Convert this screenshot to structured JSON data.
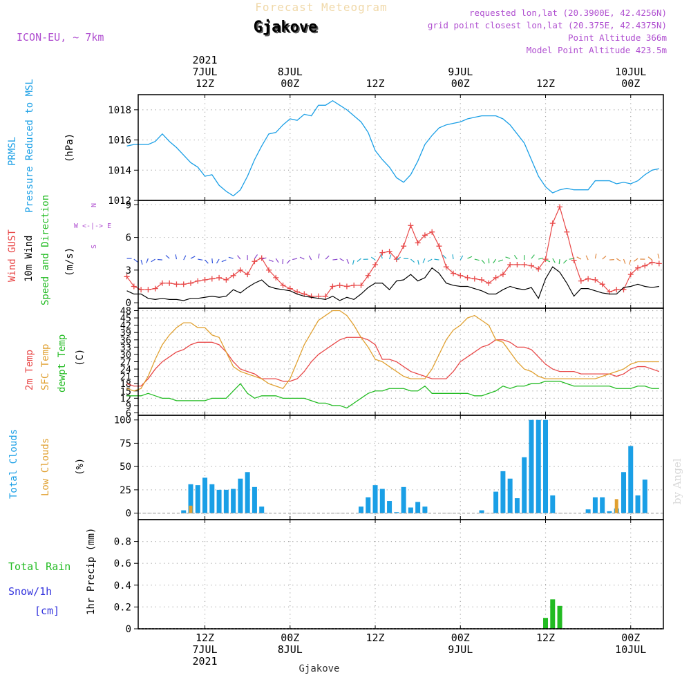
{
  "header": {
    "forecast_title": "Forecast Meteogram",
    "location": "Gjakove",
    "model": "ICON-EU, ~ 7km",
    "requested": "requested lon,lat (20.3900E, 42.4256N)",
    "grid_point": "grid point closest lon,lat (20.375E, 42.4375N)",
    "point_altitude": "Point Altitude 366m",
    "model_altitude": "Model Point Altitude 423.5m",
    "footer_location": "Gjakove",
    "watermark": "by Angel"
  },
  "colors": {
    "pressure": "#1a9fe6",
    "gust": "#e84848",
    "wind": "#000000",
    "green": "#22bb22",
    "sfc": "#e0a030",
    "total_clouds": "#1a9fe6",
    "low_clouds": "#e0a030",
    "rain": "#22bb22",
    "snow": "#3333dd",
    "purple": "#b050d0"
  },
  "time_axis": {
    "ticks": [
      12,
      24,
      36,
      48,
      60,
      72
    ],
    "top_labels": [
      {
        "h": 12,
        "lines": [
          "2021",
          "7JUL",
          "12Z"
        ]
      },
      {
        "h": 24,
        "lines": [
          "8JUL",
          "00Z"
        ]
      },
      {
        "h": 36,
        "lines": [
          "12Z"
        ]
      },
      {
        "h": 48,
        "lines": [
          "9JUL",
          "00Z"
        ]
      },
      {
        "h": 60,
        "lines": [
          "12Z"
        ]
      },
      {
        "h": 72,
        "lines": [
          "10JUL",
          "00Z"
        ]
      }
    ],
    "bottom_labels": [
      {
        "h": 12,
        "lines": [
          "12Z",
          "7JUL",
          "2021"
        ]
      },
      {
        "h": 24,
        "lines": [
          "00Z",
          "8JUL"
        ]
      },
      {
        "h": 36,
        "lines": [
          "12Z"
        ]
      },
      {
        "h": 48,
        "lines": [
          "00Z",
          "9JUL"
        ]
      },
      {
        "h": 60,
        "lines": [
          "12Z"
        ]
      },
      {
        "h": 72,
        "lines": [
          "00Z",
          "10JUL"
        ]
      }
    ]
  },
  "chart_data": [
    {
      "id": "pressure",
      "type": "line",
      "ylabel_lines": [
        "PRMSL",
        "Pressure Reduced to MSL"
      ],
      "unit": "(hPa)",
      "ylim": [
        1012,
        1019
      ],
      "ticks": [
        1012,
        1014,
        1016,
        1018
      ],
      "tick_labels": [
        "1012",
        "1014",
        "1016",
        "1018"
      ],
      "x": [
        1,
        2,
        3,
        4,
        5,
        6,
        7,
        8,
        9,
        10,
        11,
        12,
        13,
        14,
        15,
        16,
        17,
        18,
        19,
        20,
        21,
        22,
        23,
        24,
        25,
        26,
        27,
        28,
        29,
        30,
        31,
        32,
        33,
        34,
        35,
        36,
        37,
        38,
        39,
        40,
        41,
        42,
        43,
        44,
        45,
        46,
        47,
        48,
        49,
        50,
        51,
        52,
        53,
        54,
        55,
        56,
        57,
        58,
        59,
        60,
        61,
        62,
        63,
        64,
        65,
        66,
        67,
        68,
        69,
        70,
        71,
        72,
        73,
        74,
        75,
        76
      ],
      "y": [
        1015.6,
        1015.7,
        1015.7,
        1015.7,
        1015.9,
        1016.4,
        1015.9,
        1015.5,
        1015.0,
        1014.5,
        1014.2,
        1013.6,
        1013.7,
        1013.0,
        1012.6,
        1012.3,
        1012.7,
        1013.6,
        1014.7,
        1015.6,
        1016.4,
        1016.5,
        1017.0,
        1017.4,
        1017.3,
        1017.7,
        1017.6,
        1018.3,
        1018.3,
        1018.6,
        1018.3,
        1018.0,
        1017.6,
        1017.2,
        1016.5,
        1015.3,
        1014.7,
        1014.2,
        1013.5,
        1013.2,
        1013.7,
        1014.6,
        1015.7,
        1016.3,
        1016.8,
        1017.0,
        1017.1,
        1017.2,
        1017.4,
        1017.5,
        1017.6,
        1017.6,
        1017.6,
        1017.4,
        1017.0,
        1016.4,
        1015.8,
        1014.7,
        1013.6,
        1012.9,
        1012.5,
        1012.7,
        1012.8,
        1012.7,
        1012.7,
        1012.7,
        1013.3,
        1013.3,
        1013.3,
        1013.1,
        1013.2,
        1013.1,
        1013.3,
        1013.7,
        1014.0,
        1014.1
      ],
      "series": [
        {
          "values_ref": "y"
        }
      ]
    },
    {
      "id": "wind",
      "type": "line",
      "ylabel_lines": [
        "Wind GUST",
        "10m Wind",
        "Speed and Direction"
      ],
      "unit": "(m/s)",
      "compass": [
        "N",
        "W <-|-> E",
        "S"
      ],
      "ylim": [
        -0.5,
        9.4
      ],
      "ticks": [
        0,
        3,
        6,
        9
      ],
      "tick_labels": [
        "0",
        "3",
        "6",
        "9"
      ],
      "x": [
        1,
        2,
        3,
        4,
        5,
        6,
        7,
        8,
        9,
        10,
        11,
        12,
        13,
        14,
        15,
        16,
        17,
        18,
        19,
        20,
        21,
        22,
        23,
        24,
        25,
        26,
        27,
        28,
        29,
        30,
        31,
        32,
        33,
        34,
        35,
        36,
        37,
        38,
        39,
        40,
        41,
        42,
        43,
        44,
        45,
        46,
        47,
        48,
        49,
        50,
        51,
        52,
        53,
        54,
        55,
        56,
        57,
        58,
        59,
        60,
        61,
        62,
        63,
        64,
        65,
        66,
        67,
        68,
        69,
        70,
        71,
        72,
        73,
        74,
        75,
        76
      ],
      "series": [
        {
          "name": "Wind GUST",
          "values": [
            2.4,
            1.5,
            1.2,
            1.2,
            1.3,
            1.8,
            1.8,
            1.7,
            1.7,
            1.8,
            2.0,
            2.1,
            2.2,
            2.3,
            2.1,
            2.5,
            3.0,
            2.6,
            3.8,
            4.1,
            3.0,
            2.3,
            1.6,
            1.3,
            1.0,
            0.8,
            0.6,
            0.6,
            0.6,
            1.5,
            1.6,
            1.5,
            1.6,
            1.6,
            2.5,
            3.5,
            4.6,
            4.7,
            4.0,
            5.2,
            7.1,
            5.5,
            6.2,
            6.5,
            5.2,
            3.3,
            2.7,
            2.5,
            2.3,
            2.2,
            2.1,
            1.8,
            2.3,
            2.6,
            3.5,
            3.5,
            3.5,
            3.4,
            3.1,
            4.0,
            7.3,
            8.8,
            6.5,
            3.9,
            2.0,
            2.2,
            2.1,
            1.7,
            1.0,
            1.2,
            1.2,
            2.6,
            3.2,
            3.4,
            3.7,
            3.6
          ]
        },
        {
          "name": "10m Wind",
          "values": [
            1.1,
            0.8,
            0.8,
            0.4,
            0.3,
            0.4,
            0.3,
            0.3,
            0.2,
            0.4,
            0.4,
            0.5,
            0.6,
            0.5,
            0.6,
            1.2,
            0.9,
            1.4,
            1.8,
            2.1,
            1.5,
            1.3,
            1.2,
            1.1,
            0.8,
            0.6,
            0.5,
            0.4,
            0.3,
            0.6,
            0.2,
            0.5,
            0.3,
            0.8,
            1.4,
            1.8,
            1.8,
            1.2,
            2.0,
            2.1,
            2.6,
            2.0,
            2.3,
            3.2,
            2.7,
            1.8,
            1.6,
            1.5,
            1.5,
            1.3,
            1.1,
            0.8,
            0.8,
            1.2,
            1.5,
            1.3,
            1.2,
            1.4,
            0.4,
            2.2,
            3.3,
            2.8,
            1.8,
            0.6,
            1.3,
            1.3,
            1.1,
            0.9,
            0.8,
            0.8,
            1.4,
            1.5,
            1.7,
            1.5,
            1.4,
            1.5
          ]
        }
      ]
    },
    {
      "id": "temperature",
      "type": "line",
      "ylabel_lines": [
        "2m Temp",
        "SFC Temp",
        "dewpt Temp"
      ],
      "unit": "(C)",
      "ylim": [
        5,
        49
      ],
      "ticks": [
        6,
        9,
        12,
        15,
        18,
        21,
        24,
        27,
        30,
        33,
        36,
        39,
        42,
        45,
        48
      ],
      "tick_labels": [
        "6",
        "9",
        "12",
        "15",
        "18",
        "21",
        "24",
        "27",
        "30",
        "33",
        "36",
        "39",
        "42",
        "45",
        "48"
      ],
      "x": [
        1,
        2,
        3,
        4,
        5,
        6,
        7,
        8,
        9,
        10,
        11,
        12,
        13,
        14,
        15,
        16,
        17,
        18,
        19,
        20,
        21,
        22,
        23,
        24,
        25,
        26,
        27,
        28,
        29,
        30,
        31,
        32,
        33,
        34,
        35,
        36,
        37,
        38,
        39,
        40,
        41,
        42,
        43,
        44,
        45,
        46,
        47,
        48,
        49,
        50,
        51,
        52,
        53,
        54,
        55,
        56,
        57,
        58,
        59,
        60,
        61,
        62,
        63,
        64,
        65,
        66,
        67,
        68,
        69,
        70,
        71,
        72,
        73,
        74,
        75,
        76
      ],
      "series": [
        {
          "name": "2m Temp",
          "values": [
            18,
            17,
            17,
            20,
            24,
            27,
            29,
            31,
            32,
            34,
            35,
            35,
            35,
            34,
            31,
            27,
            24,
            23,
            22,
            20,
            20,
            20,
            19,
            19,
            20,
            23,
            27,
            30,
            32,
            34,
            36,
            37,
            37,
            37,
            36,
            34,
            28,
            28,
            27,
            25,
            23,
            22,
            21,
            20,
            20,
            20,
            23,
            27,
            29,
            31,
            33,
            34,
            36,
            36,
            35,
            33,
            33,
            32,
            29,
            26,
            24,
            23,
            23,
            23,
            22,
            22,
            22,
            22,
            22,
            21,
            22,
            24,
            25,
            25,
            24,
            23
          ]
        },
        {
          "name": "SFC Temp",
          "values": [
            16,
            15,
            16,
            21,
            28,
            34,
            38,
            41,
            43,
            43,
            41,
            41,
            38,
            37,
            31,
            25,
            23,
            22,
            21,
            20,
            18,
            17,
            16,
            20,
            27,
            34,
            39,
            44,
            46,
            48,
            48,
            46,
            42,
            37,
            33,
            28,
            27,
            25,
            23,
            21,
            20,
            20,
            20,
            24,
            30,
            36,
            40,
            42,
            45,
            46,
            44,
            42,
            36,
            35,
            31,
            27,
            24,
            23,
            21,
            20,
            20,
            20,
            20,
            20,
            20,
            20,
            20,
            21,
            22,
            23,
            24,
            26,
            27,
            27,
            27,
            27
          ]
        },
        {
          "name": "dewpt Temp",
          "values": [
            13,
            13,
            13,
            14,
            13,
            12,
            12,
            11,
            11,
            11,
            11,
            11,
            12,
            12,
            12,
            15,
            18,
            14,
            12,
            13,
            13,
            13,
            12,
            12,
            12,
            12,
            11,
            10,
            10,
            9,
            9,
            8,
            10,
            12,
            14,
            15,
            15,
            16,
            16,
            16,
            15,
            15,
            17,
            14,
            14,
            14,
            14,
            14,
            14,
            13,
            13,
            14,
            15,
            17,
            16,
            17,
            17,
            18,
            18,
            19,
            19,
            19,
            18,
            17,
            17,
            17,
            17,
            17,
            17,
            16,
            16,
            16,
            17,
            17,
            16,
            16
          ]
        }
      ]
    },
    {
      "id": "clouds",
      "type": "bar",
      "ylabel_lines": [
        "Total Clouds",
        "Low Clouds"
      ],
      "unit": "(%)",
      "ylim": [
        -7,
        105
      ],
      "ticks": [
        0,
        25,
        50,
        75,
        100
      ],
      "tick_labels": [
        "0",
        "25",
        "50",
        "75",
        "100"
      ],
      "x": [
        9,
        10,
        11,
        12,
        13,
        14,
        15,
        16,
        17,
        18,
        19,
        20,
        21,
        33,
        34,
        35,
        36,
        37,
        38,
        39,
        40,
        41,
        42,
        43,
        50,
        51,
        52,
        53,
        54,
        55,
        56,
        57,
        58,
        59,
        60,
        61,
        62,
        63,
        64,
        65,
        66,
        67,
        68,
        69,
        70,
        71,
        72,
        73,
        74,
        75,
        76
      ],
      "series": [
        {
          "name": "Total Clouds",
          "values": [
            3,
            31,
            30,
            38,
            31,
            25,
            25,
            26,
            37,
            44,
            28,
            7,
            0,
            0,
            7,
            17,
            30,
            26,
            13,
            1,
            28,
            6,
            12,
            7,
            0,
            3,
            0,
            23,
            45,
            37,
            16,
            60,
            100,
            100,
            100,
            19,
            0,
            0,
            0,
            0,
            4,
            17,
            17,
            2,
            5,
            44,
            72,
            19,
            36,
            0,
            0
          ]
        },
        {
          "name": "Low Clouds",
          "values": [
            0,
            8,
            0,
            0,
            0,
            0,
            0,
            0,
            0,
            0,
            0,
            0,
            0,
            0,
            0,
            0,
            0,
            0,
            0,
            0,
            0,
            0,
            0,
            0,
            0,
            0,
            0,
            0,
            0,
            0,
            0,
            0,
            0,
            0,
            0,
            0,
            0,
            0,
            0,
            0,
            0,
            0,
            0,
            0,
            15,
            0,
            0,
            0,
            0,
            0,
            0
          ]
        }
      ]
    },
    {
      "id": "precip",
      "type": "bar",
      "ylabel_lines": [
        "1hr Precip (mm)"
      ],
      "left_labels": [
        "Total Rain",
        "Snow/1h",
        "[cm]"
      ],
      "ylim": [
        0,
        1
      ],
      "ticks": [
        0,
        0.2,
        0.4,
        0.6,
        0.8
      ],
      "tick_labels": [
        "0",
        "0.2",
        "0.4",
        "0.6",
        "0.8"
      ],
      "x": [
        60,
        61,
        62
      ],
      "series": [
        {
          "name": "Total Rain",
          "values": [
            0.1,
            0.27,
            0.21
          ]
        }
      ]
    }
  ]
}
